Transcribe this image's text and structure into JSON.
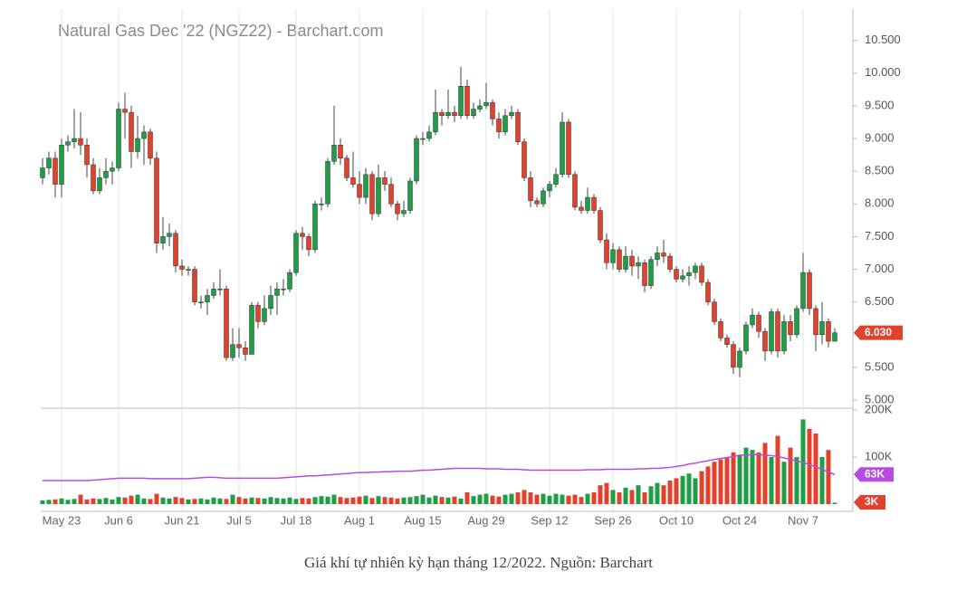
{
  "chart_data": [
    {
      "type": "candlestick",
      "title": "Natural Gas Dec '22 (NGZ22) - Barchart.com",
      "up_color": "#1e9e46",
      "down_color": "#e2412c",
      "grid": true,
      "categories": [
        null,
        null,
        null,
        "May 23",
        null,
        null,
        null,
        null,
        null,
        null,
        null,
        null,
        "Jun 6",
        null,
        null,
        null,
        null,
        null,
        null,
        null,
        null,
        null,
        "Jun 21",
        null,
        null,
        null,
        null,
        null,
        null,
        null,
        null,
        "Jul 5",
        null,
        null,
        null,
        null,
        null,
        null,
        null,
        null,
        "Jul 18",
        null,
        null,
        null,
        null,
        null,
        null,
        null,
        null,
        null,
        "Aug 1",
        null,
        null,
        null,
        null,
        null,
        null,
        null,
        null,
        null,
        "Aug 15",
        null,
        null,
        null,
        null,
        null,
        null,
        null,
        null,
        null,
        "Aug 29",
        null,
        null,
        null,
        null,
        null,
        null,
        null,
        null,
        null,
        "Sep 12",
        null,
        null,
        null,
        null,
        null,
        null,
        null,
        null,
        null,
        "Sep 26",
        null,
        null,
        null,
        null,
        null,
        null,
        null,
        null,
        null,
        "Oct 10",
        null,
        null,
        null,
        null,
        null,
        null,
        null,
        null,
        null,
        "Oct 24",
        null,
        null,
        null,
        null,
        null,
        null,
        null,
        null,
        null,
        "Nov 7",
        null,
        null,
        null,
        null,
        null
      ],
      "open": [
        8.4,
        8.55,
        8.7,
        8.3,
        8.9,
        8.95,
        9.0,
        8.9,
        8.6,
        8.2,
        8.4,
        8.5,
        8.55,
        9.45,
        9.4,
        8.8,
        9.0,
        9.1,
        8.7,
        7.4,
        7.5,
        7.55,
        7.05,
        7.0,
        7.0,
        6.5,
        6.5,
        6.6,
        6.7,
        6.7,
        5.65,
        5.85,
        5.8,
        5.7,
        6.45,
        6.2,
        6.4,
        6.6,
        6.7,
        6.7,
        6.95,
        7.55,
        7.5,
        7.3,
        8.0,
        8.0,
        8.65,
        8.9,
        8.7,
        8.4,
        8.3,
        8.1,
        8.45,
        7.85,
        8.4,
        8.3,
        8.0,
        7.85,
        7.9,
        8.35,
        9.0,
        9.0,
        9.1,
        9.4,
        9.35,
        9.4,
        9.35,
        9.8,
        9.35,
        9.45,
        9.5,
        9.55,
        9.3,
        9.1,
        9.35,
        9.4,
        8.95,
        8.4,
        8.05,
        8.0,
        8.2,
        8.3,
        8.45,
        9.25,
        8.45,
        7.95,
        7.9,
        8.1,
        7.9,
        7.45,
        7.1,
        7.3,
        7.0,
        7.2,
        7.05,
        7.1,
        6.75,
        7.15,
        7.25,
        7.2,
        7.0,
        6.85,
        6.9,
        6.95,
        7.05,
        6.8,
        6.5,
        6.2,
        5.95,
        5.85,
        5.5,
        5.75,
        6.15,
        6.3,
        6.05,
        5.75,
        6.35,
        5.75,
        6.2,
        6.0,
        6.4,
        6.95,
        6.4,
        6.0,
        6.2,
        5.9
      ],
      "high": [
        8.7,
        8.8,
        8.8,
        9.0,
        9.05,
        9.45,
        9.4,
        9.0,
        8.7,
        8.55,
        8.7,
        8.65,
        9.55,
        9.7,
        9.5,
        9.35,
        9.2,
        9.15,
        8.8,
        7.8,
        7.7,
        7.6,
        7.15,
        7.05,
        7.05,
        6.6,
        6.7,
        6.8,
        7.0,
        6.75,
        6.1,
        6.1,
        5.9,
        6.5,
        6.5,
        6.6,
        6.75,
        6.8,
        6.85,
        7.0,
        7.6,
        7.65,
        7.55,
        8.05,
        8.1,
        8.7,
        9.5,
        9.0,
        8.75,
        8.8,
        8.5,
        8.55,
        8.5,
        8.6,
        8.5,
        8.4,
        8.05,
        8.05,
        8.4,
        9.05,
        9.1,
        9.2,
        9.75,
        9.45,
        9.75,
        9.5,
        10.1,
        9.9,
        9.55,
        9.6,
        9.85,
        9.6,
        9.4,
        9.45,
        9.5,
        9.45,
        9.0,
        8.5,
        8.1,
        8.25,
        8.35,
        8.55,
        9.4,
        9.3,
        8.5,
        8.05,
        8.25,
        8.15,
        7.95,
        7.55,
        7.4,
        7.35,
        7.35,
        7.3,
        7.2,
        7.15,
        7.2,
        7.35,
        7.45,
        7.25,
        7.05,
        7.0,
        7.05,
        7.1,
        7.1,
        6.85,
        6.55,
        6.25,
        6.0,
        5.9,
        5.8,
        6.2,
        6.4,
        6.35,
        6.1,
        6.4,
        6.4,
        6.3,
        6.3,
        6.45,
        7.25,
        7.0,
        6.45,
        6.5,
        6.25,
        6.1
      ],
      "low": [
        8.3,
        8.45,
        8.1,
        8.1,
        8.8,
        8.85,
        8.75,
        8.4,
        8.15,
        8.15,
        8.3,
        8.3,
        8.5,
        9.0,
        8.55,
        8.7,
        8.6,
        8.6,
        7.25,
        7.3,
        7.35,
        6.95,
        6.9,
        6.9,
        6.45,
        6.4,
        6.3,
        6.55,
        6.6,
        5.6,
        5.6,
        5.65,
        5.6,
        5.7,
        6.1,
        6.15,
        6.3,
        6.3,
        6.6,
        6.65,
        6.9,
        7.3,
        7.2,
        7.25,
        7.9,
        7.95,
        8.6,
        8.6,
        8.35,
        8.25,
        8.0,
        8.0,
        7.75,
        7.8,
        8.2,
        7.95,
        7.75,
        7.8,
        7.85,
        8.3,
        8.9,
        8.95,
        9.05,
        9.2,
        9.3,
        9.25,
        9.3,
        9.3,
        9.3,
        9.4,
        9.45,
        9.2,
        9.0,
        9.05,
        9.3,
        8.9,
        8.35,
        7.95,
        7.95,
        7.95,
        8.1,
        8.25,
        8.4,
        8.4,
        7.9,
        7.85,
        7.85,
        7.85,
        7.4,
        7.0,
        7.0,
        6.95,
        6.95,
        6.9,
        6.85,
        6.65,
        6.7,
        7.05,
        7.1,
        6.95,
        6.8,
        6.8,
        6.75,
        6.85,
        6.75,
        6.45,
        6.15,
        5.9,
        5.8,
        5.4,
        5.35,
        5.7,
        6.1,
        5.95,
        5.6,
        5.7,
        5.65,
        5.7,
        5.9,
        5.95,
        6.35,
        6.3,
        5.75,
        5.85,
        5.8,
        5.95
      ],
      "close": [
        8.55,
        8.7,
        8.3,
        8.9,
        8.95,
        9.0,
        8.9,
        8.6,
        8.2,
        8.4,
        8.5,
        8.55,
        9.45,
        9.4,
        8.8,
        9.0,
        9.1,
        8.7,
        7.4,
        7.5,
        7.55,
        7.05,
        7.0,
        7.0,
        6.5,
        6.5,
        6.6,
        6.7,
        6.7,
        5.65,
        5.85,
        5.8,
        5.7,
        6.45,
        6.2,
        6.4,
        6.6,
        6.7,
        6.7,
        6.95,
        7.55,
        7.5,
        7.3,
        8.0,
        8.0,
        8.65,
        8.9,
        8.7,
        8.4,
        8.3,
        8.1,
        8.45,
        7.85,
        8.4,
        8.3,
        8.0,
        7.85,
        7.9,
        8.35,
        9.0,
        9.0,
        9.1,
        9.4,
        9.35,
        9.4,
        9.35,
        9.8,
        9.35,
        9.45,
        9.5,
        9.55,
        9.3,
        9.1,
        9.35,
        9.4,
        8.95,
        8.4,
        8.05,
        8.0,
        8.2,
        8.3,
        8.45,
        9.25,
        8.45,
        7.95,
        7.9,
        8.1,
        7.9,
        7.45,
        7.1,
        7.3,
        7.0,
        7.2,
        7.05,
        7.1,
        6.75,
        7.15,
        7.25,
        7.2,
        7.0,
        6.85,
        6.9,
        6.95,
        7.05,
        6.8,
        6.5,
        6.2,
        5.95,
        5.85,
        5.5,
        5.75,
        6.15,
        6.3,
        6.05,
        5.75,
        6.35,
        5.75,
        6.2,
        6.0,
        6.4,
        6.95,
        6.4,
        6.0,
        6.2,
        5.9,
        6.03
      ],
      "last_close_label": "6.030",
      "badge_color": "#e2412c",
      "ylim": [
        4.89,
        10.98
      ],
      "yticks": [
        {
          "value": 5.0,
          "label": "5.000"
        },
        {
          "value": 5.5,
          "label": "5.500"
        },
        {
          "value": 6.0,
          "label": "6.000"
        },
        {
          "value": 6.5,
          "label": "6.500"
        },
        {
          "value": 7.0,
          "label": "7.000"
        },
        {
          "value": 7.5,
          "label": "7.500"
        },
        {
          "value": 8.0,
          "label": "8.000"
        },
        {
          "value": 8.5,
          "label": "8.500"
        },
        {
          "value": 9.0,
          "label": "9.000"
        },
        {
          "value": 9.5,
          "label": "9.500"
        },
        {
          "value": 10.0,
          "label": "10.000"
        },
        {
          "value": 10.5,
          "label": "10.500"
        }
      ]
    },
    {
      "type": "volume",
      "values": [
        8000,
        9000,
        10000,
        12000,
        9000,
        11000,
        20000,
        10000,
        12000,
        11000,
        13000,
        10000,
        15000,
        14000,
        18000,
        20000,
        12000,
        11000,
        22000,
        14000,
        12000,
        15000,
        13000,
        10000,
        11000,
        12000,
        10000,
        14000,
        12000,
        11000,
        20000,
        15000,
        12000,
        14000,
        13000,
        12000,
        15000,
        13000,
        12000,
        14000,
        11000,
        13000,
        12000,
        15000,
        17000,
        16000,
        20000,
        15000,
        13000,
        14000,
        16000,
        18000,
        13000,
        17000,
        15000,
        14000,
        12000,
        14000,
        15000,
        17000,
        20000,
        14000,
        18000,
        15000,
        14000,
        16000,
        12000,
        25000,
        17000,
        20000,
        22000,
        18000,
        16000,
        20000,
        22000,
        25000,
        30000,
        25000,
        20000,
        22000,
        18000,
        22000,
        20000,
        18000,
        20000,
        15000,
        22000,
        25000,
        40000,
        45000,
        30000,
        25000,
        35000,
        30000,
        40000,
        25000,
        38000,
        45000,
        40000,
        50000,
        55000,
        60000,
        65000,
        55000,
        70000,
        80000,
        90000,
        95000,
        100000,
        110000,
        105000,
        120000,
        115000,
        110000,
        130000,
        100000,
        145000,
        90000,
        120000,
        100000,
        180000,
        160000,
        150000,
        100000,
        115000,
        3000
      ],
      "last_value_label": "3K",
      "average": [
        50000,
        50000,
        50000,
        50000,
        50000,
        50000,
        50000,
        50000,
        51000,
        52000,
        53000,
        54000,
        55000,
        55000,
        55000,
        55000,
        55000,
        54000,
        54000,
        54000,
        54000,
        54000,
        54000,
        54000,
        55000,
        56000,
        57000,
        57000,
        56000,
        55000,
        55000,
        55000,
        55000,
        55000,
        55000,
        55000,
        55000,
        55000,
        56000,
        57000,
        58000,
        59000,
        60000,
        60000,
        61000,
        62000,
        63000,
        64000,
        65000,
        66000,
        67000,
        67000,
        68000,
        68000,
        69000,
        69000,
        70000,
        70000,
        70000,
        71000,
        72000,
        72000,
        73000,
        74000,
        75000,
        76000,
        76000,
        76000,
        76000,
        76000,
        75000,
        75000,
        75000,
        74000,
        74000,
        74000,
        73000,
        72000,
        72000,
        72000,
        72000,
        72000,
        72000,
        72000,
        72000,
        72000,
        73000,
        73000,
        73000,
        74000,
        74000,
        74000,
        74000,
        74000,
        75000,
        75000,
        76000,
        76000,
        77000,
        78000,
        80000,
        82000,
        85000,
        87000,
        90000,
        92000,
        95000,
        97000,
        99000,
        101000,
        104000,
        104000,
        105000,
        105000,
        104000,
        103000,
        101000,
        98000,
        95000,
        92000,
        88000,
        84000,
        79000,
        74000,
        68000,
        63000
      ],
      "average_color": "#b54ee0",
      "last_average_label": "63K",
      "ylim": [
        0,
        200000
      ],
      "yticks": [
        {
          "value": 100000,
          "label": "100K"
        },
        {
          "value": 200000,
          "label": "200K"
        }
      ]
    }
  ],
  "caption": "Giá khí tự nhiên kỳ hạn tháng 12/2022. Nguồn: Barchart"
}
